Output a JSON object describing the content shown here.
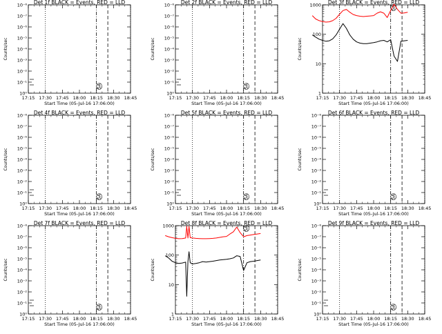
{
  "chart_data": [
    {
      "type": "line",
      "title": "Det 1f BLACK = Events, RED = LLD",
      "xlabel": "Start Time (05-Jul-16 17:06:00)",
      "ylabel": "Counts/sec",
      "scale": "log",
      "ylim_exp": [
        0,
        8
      ],
      "ytick_labels": [
        "10⁰",
        "10⁻¹",
        "10⁻²",
        "10⁻³",
        "10⁻⁴",
        "10⁻⁵",
        "10⁻⁶",
        "10⁻⁷",
        "10⁻⁸"
      ],
      "xtick_labels": [
        "17:15",
        "17:30",
        "17:45",
        "18:00",
        "18:15",
        "18:30",
        "18:45"
      ],
      "annotation": "SA",
      "series": []
    },
    {
      "type": "line",
      "title": "Det 2f BLACK = Events, RED = LLD",
      "xlabel": "Start Time (05-Jul-16 17:06:00)",
      "ylabel": "Counts/sec",
      "scale": "log",
      "ylim_exp": [
        0,
        8
      ],
      "ytick_labels": [
        "10⁰",
        "10⁻¹",
        "10⁻²",
        "10⁻³",
        "10⁻⁴",
        "10⁻⁵",
        "10⁻⁶",
        "10⁻⁷",
        "10⁻⁸"
      ],
      "xtick_labels": [
        "17:15",
        "17:30",
        "17:45",
        "18:00",
        "18:15",
        "18:30",
        "18:45"
      ],
      "annotation": "SA",
      "series": []
    },
    {
      "type": "line",
      "title": "Det 3f BLACK = Events, RED = LLD",
      "xlabel": "Start Time (05-Jul-16 17:06:00)",
      "ylabel": "Counts/sec",
      "scale": "decades",
      "ylim_exp": [
        0,
        3
      ],
      "ytick_labels": [
        "1",
        "10",
        "100",
        "1000"
      ],
      "xtick_labels": [
        "17:15",
        "17:30",
        "17:45",
        "18:00",
        "18:15",
        "18:30",
        "18:45"
      ],
      "annotation": "SA",
      "series": [
        {
          "color": "#ff0000",
          "x": [
            0,
            3,
            6,
            9,
            12,
            15,
            18,
            21,
            24,
            27,
            30,
            33,
            36,
            39,
            42,
            45,
            48,
            51,
            54,
            57,
            60,
            63,
            66,
            69,
            72,
            75,
            78,
            81,
            84
          ],
          "y": [
            430,
            330,
            290,
            270,
            260,
            265,
            290,
            350,
            480,
            640,
            700,
            560,
            470,
            430,
            410,
            400,
            410,
            420,
            430,
            520,
            580,
            520,
            370,
            650,
            1050,
            700,
            520,
            530,
            560
          ]
        },
        {
          "color": "#000000",
          "x": [
            0,
            3,
            6,
            9,
            12,
            15,
            18,
            21,
            24,
            27,
            30,
            33,
            36,
            39,
            42,
            45,
            48,
            51,
            54,
            57,
            60,
            63,
            66,
            69,
            72,
            75,
            78,
            81,
            84
          ],
          "y": [
            95,
            80,
            68,
            62,
            58,
            60,
            70,
            95,
            150,
            230,
            160,
            95,
            68,
            55,
            50,
            48,
            48,
            50,
            52,
            55,
            60,
            62,
            55,
            65,
            18,
            12,
            58,
            60,
            62
          ]
        }
      ]
    },
    {
      "type": "line",
      "title": "Det 4f BLACK = Events, RED = LLD",
      "xlabel": "Start Time (05-Jul-16 17:06:00)",
      "ylabel": "Counts/sec",
      "scale": "log",
      "ylim_exp": [
        0,
        8
      ],
      "ytick_labels": [
        "10⁰",
        "10⁻¹",
        "10⁻²",
        "10⁻³",
        "10⁻⁴",
        "10⁻⁵",
        "10⁻⁶",
        "10⁻⁷",
        "10⁻⁸"
      ],
      "xtick_labels": [
        "17:15",
        "17:30",
        "17:45",
        "18:00",
        "18:15",
        "18:30",
        "18:45"
      ],
      "annotation": "SA",
      "series": []
    },
    {
      "type": "line",
      "title": "Det 5f BLACK = Events, RED = LLD",
      "xlabel": "Start Time (05-Jul-16 17:06:00)",
      "ylabel": "Counts/sec",
      "scale": "log",
      "ylim_exp": [
        0,
        8
      ],
      "ytick_labels": [
        "10⁰",
        "10⁻¹",
        "10⁻²",
        "10⁻³",
        "10⁻⁴",
        "10⁻⁵",
        "10⁻⁶",
        "10⁻⁷",
        "10⁻⁸"
      ],
      "xtick_labels": [
        "17:15",
        "17:30",
        "17:45",
        "18:00",
        "18:15",
        "18:30",
        "18:45"
      ],
      "annotation": "SA",
      "series": []
    },
    {
      "type": "line",
      "title": "Det 6f BLACK = Events, RED = LLD",
      "xlabel": "Start Time (05-Jul-16 17:06:00)",
      "ylabel": "Counts/sec",
      "scale": "log",
      "ylim_exp": [
        0,
        8
      ],
      "ytick_labels": [
        "10⁰",
        "10⁻¹",
        "10⁻²",
        "10⁻³",
        "10⁻⁴",
        "10⁻⁵",
        "10⁻⁶",
        "10⁻⁷",
        "10⁻⁸"
      ],
      "xtick_labels": [
        "17:15",
        "17:30",
        "17:45",
        "18:00",
        "18:15",
        "18:30",
        "18:45"
      ],
      "annotation": "SA",
      "series": []
    },
    {
      "type": "line",
      "title": "Det 7f BLACK = Events, RED = LLD",
      "xlabel": "Start Time (05-Jul-16 17:06:00)",
      "ylabel": "Counts/sec",
      "scale": "log",
      "ylim_exp": [
        0,
        8
      ],
      "ytick_labels": [
        "10⁰",
        "10⁻¹",
        "10⁻²",
        "10⁻³",
        "10⁻⁴",
        "10⁻⁵",
        "10⁻⁶",
        "10⁻⁷",
        "10⁻⁸"
      ],
      "xtick_labels": [
        "17:15",
        "17:30",
        "17:45",
        "18:00",
        "18:15",
        "18:30",
        "18:45"
      ],
      "annotation": "SA",
      "series": []
    },
    {
      "type": "line",
      "title": "Det 8f BLACK = Events, RED = LLD",
      "xlabel": "Start Time (05-Jul-16 17:06:00)",
      "ylabel": "Counts/sec",
      "scale": "decades",
      "ylim_exp": [
        0,
        3
      ],
      "ytick_labels": [
        "1",
        "10",
        "100",
        "1000"
      ],
      "xtick_labels": [
        "17:15",
        "17:30",
        "17:45",
        "18:00",
        "18:15",
        "18:30",
        "18:45"
      ],
      "annotation": "SA",
      "series": [
        {
          "color": "#ff0000",
          "x": [
            0,
            3,
            6,
            9,
            12,
            15,
            18,
            19,
            20,
            21,
            22,
            24,
            27,
            30,
            33,
            36,
            39,
            42,
            45,
            48,
            51,
            54,
            57,
            60,
            63,
            66,
            69,
            72,
            75,
            78,
            81,
            84
          ],
          "y": [
            460,
            420,
            390,
            370,
            360,
            365,
            380,
            950,
            380,
            950,
            390,
            380,
            370,
            365,
            360,
            360,
            365,
            370,
            380,
            400,
            420,
            430,
            520,
            620,
            900,
            580,
            420,
            460,
            480,
            500,
            520,
            540
          ]
        },
        {
          "color": "#000000",
          "x": [
            0,
            3,
            6,
            9,
            12,
            15,
            18,
            19,
            20,
            21,
            22,
            24,
            27,
            30,
            33,
            36,
            39,
            42,
            45,
            48,
            51,
            54,
            57,
            60,
            63,
            66,
            69,
            72,
            75,
            78,
            81,
            84
          ],
          "y": [
            95,
            80,
            62,
            55,
            52,
            54,
            58,
            4,
            60,
            130,
            55,
            50,
            52,
            55,
            60,
            58,
            60,
            62,
            65,
            68,
            70,
            72,
            75,
            80,
            95,
            90,
            30,
            55,
            60,
            62,
            65,
            68
          ]
        }
      ]
    },
    {
      "type": "line",
      "title": "Det 9f BLACK = Events, RED = LLD",
      "xlabel": "Start Time (05-Jul-16 17:06:00)",
      "ylabel": "Counts/sec",
      "scale": "log",
      "ylim_exp": [
        0,
        8
      ],
      "ytick_labels": [
        "10⁰",
        "10⁻¹",
        "10⁻²",
        "10⁻³",
        "10⁻⁴",
        "10⁻⁵",
        "10⁻⁶",
        "10⁻⁷",
        "10⁻⁸"
      ],
      "xtick_labels": [
        "17:15",
        "17:30",
        "17:45",
        "18:00",
        "18:15",
        "18:30",
        "18:45"
      ],
      "annotation": "SA",
      "series": []
    }
  ]
}
